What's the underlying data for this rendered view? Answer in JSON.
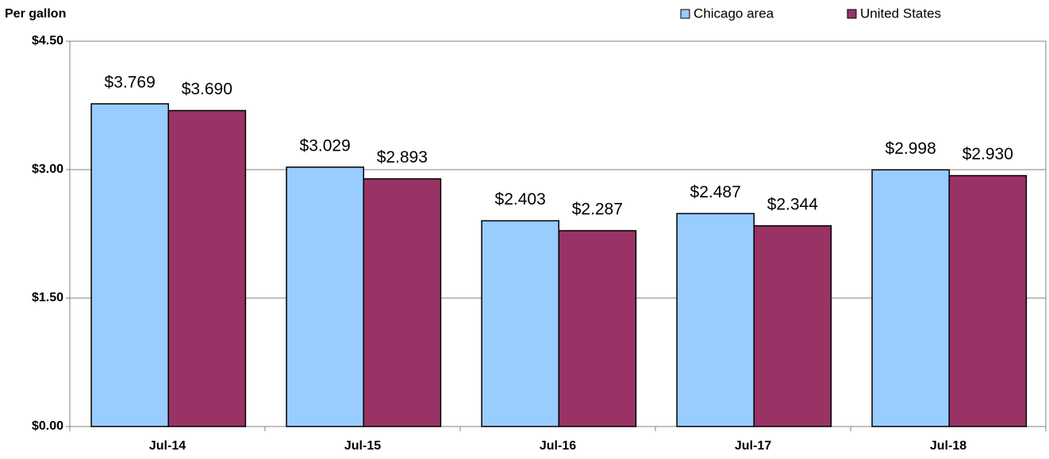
{
  "chart_data": {
    "type": "bar",
    "y_axis_label": "Per gallon",
    "categories": [
      "Jul-14",
      "Jul-15",
      "Jul-16",
      "Jul-17",
      "Jul-18"
    ],
    "series": [
      {
        "name": "Chicago area",
        "color": "#99ccff",
        "values": [
          3.769,
          3.029,
          2.403,
          2.487,
          2.998
        ],
        "value_labels": [
          "$3.769",
          "$3.029",
          "$2.403",
          "$2.487",
          "$2.998"
        ]
      },
      {
        "name": "United States",
        "color": "#993366",
        "values": [
          3.69,
          2.893,
          2.287,
          2.344,
          2.93
        ],
        "value_labels": [
          "$3.690",
          "$2.893",
          "$2.287",
          "$2.344",
          "$2.930"
        ]
      }
    ],
    "ylim": [
      0,
      4.5
    ],
    "yticks": [
      {
        "value": 0,
        "label": "$0.00"
      },
      {
        "value": 1.5,
        "label": "$1.50"
      },
      {
        "value": 3,
        "label": "$3.00"
      },
      {
        "value": 4.5,
        "label": "$4.50"
      }
    ],
    "grid": true,
    "legend": "top-right"
  }
}
